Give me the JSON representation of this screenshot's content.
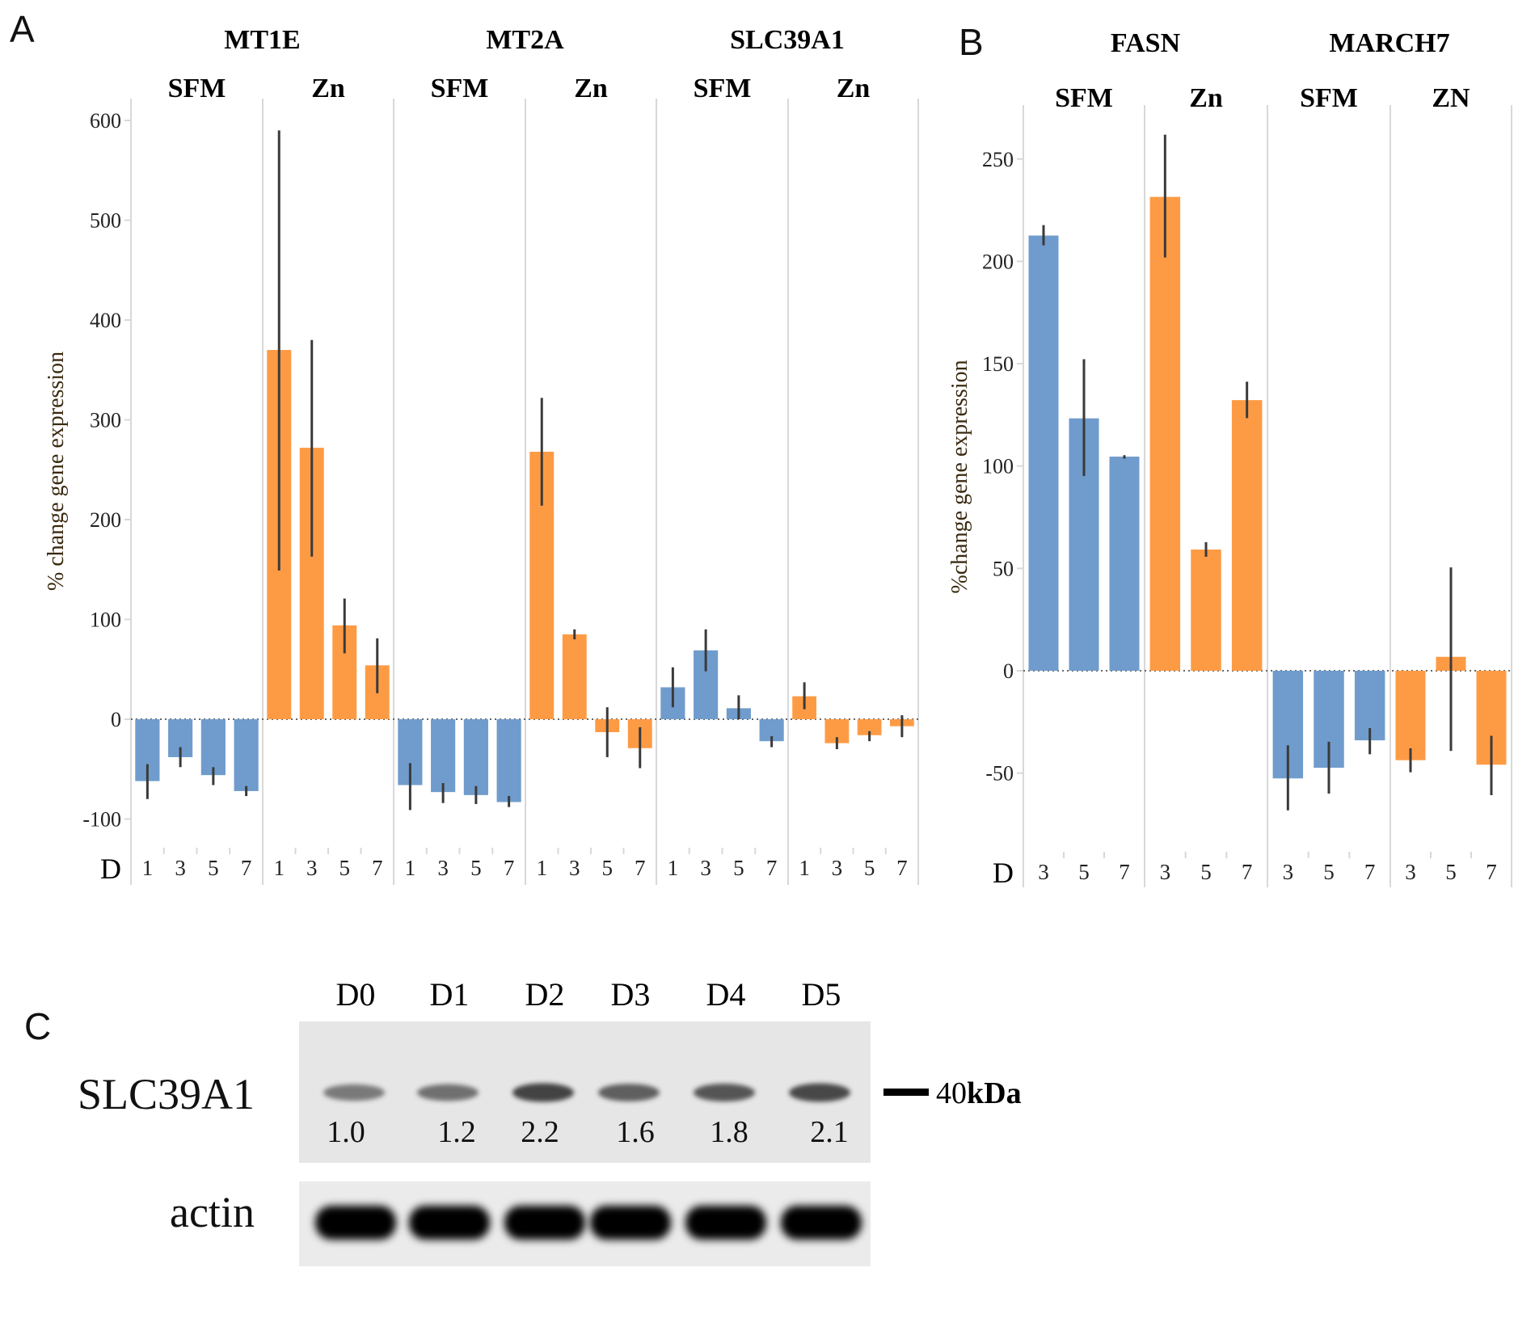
{
  "colors": {
    "sfm": "#6f9ccc",
    "zn": "#fd9b45",
    "error": "#3a3a3a",
    "grid": "#d8d8d8"
  },
  "chart_data": [
    {
      "type": "bar",
      "panel": "A",
      "ylabel": "% change gene expression",
      "ylim": [
        -120,
        620
      ],
      "yticks": [
        600,
        500,
        400,
        300,
        200,
        100,
        0,
        -100
      ],
      "xlabel_prefix": "D",
      "days": [
        "1",
        "3",
        "5",
        "7"
      ],
      "groups": [
        {
          "gene": "MT1E",
          "conditions": [
            {
              "name": "SFM",
              "values": [
                -62,
                -38,
                -56,
                -72
              ],
              "err_low": [
                -80,
                -48,
                -66,
                -77
              ],
              "err_high": [
                -45,
                -28,
                -48,
                -67
              ]
            },
            {
              "name": "Zn",
              "values": [
                370,
                272,
                94,
                54
              ],
              "err_low": [
                149,
                163,
                66,
                26
              ],
              "err_high": [
                590,
                380,
                121,
                81
              ]
            }
          ]
        },
        {
          "gene": "MT2A",
          "conditions": [
            {
              "name": "SFM",
              "values": [
                -66,
                -73,
                -76,
                -83
              ],
              "err_low": [
                -91,
                -84,
                -85,
                -88
              ],
              "err_high": [
                -44,
                -64,
                -67,
                -77
              ]
            },
            {
              "name": "Zn",
              "values": [
                268,
                85,
                -13,
                -29
              ],
              "err_low": [
                214,
                80,
                -38,
                -49
              ],
              "err_high": [
                322,
                90,
                12,
                -8
              ]
            }
          ]
        },
        {
          "gene": "SLC39A1",
          "conditions": [
            {
              "name": "SFM",
              "values": [
                32,
                69,
                11,
                -22
              ],
              "err_low": [
                12,
                48,
                0,
                -28
              ],
              "err_high": [
                52,
                90,
                24,
                -17
              ]
            },
            {
              "name": "Zn",
              "values": [
                23,
                -24,
                -16,
                -7
              ],
              "err_low": [
                10,
                -30,
                -22,
                -18
              ],
              "err_high": [
                37,
                -18,
                -12,
                4
              ]
            }
          ]
        }
      ]
    },
    {
      "type": "bar",
      "panel": "B",
      "ylabel": "%change gene expression",
      "ylim": [
        -75,
        265
      ],
      "yticks": [
        250,
        200,
        150,
        100,
        50,
        0,
        -50
      ],
      "xlabel_prefix": "D",
      "days": [
        "3",
        "5",
        "7"
      ],
      "groups": [
        {
          "gene": "FASN",
          "conditions": [
            {
              "name": "SFM",
              "values": [
                212.6,
                123.3,
                104.6
              ],
              "err_low": [
                207.8,
                95.1,
                103.6
              ],
              "err_high": [
                217.7,
                152.2,
                105.3
              ]
            },
            {
              "name": "Zn",
              "values": [
                231.5,
                59.2,
                132.2
              ],
              "err_low": [
                201.9,
                55.7,
                123.4
              ],
              "err_high": [
                261.9,
                62.8,
                141.2
              ]
            }
          ]
        },
        {
          "gene": "MARCH7",
          "conditions": [
            {
              "name": "SFM",
              "values": [
                -52.6,
                -47.4,
                -34
              ],
              "err_low": [
                -68.2,
                -60,
                -40.8
              ],
              "err_high": [
                -36.4,
                -34.7,
                -28
              ]
            },
            {
              "name": "ZN",
              "values": [
                -43.7,
                6.8,
                -45.9
              ],
              "err_low": [
                -49.6,
                -39.2,
                -60.8
              ],
              "err_high": [
                -37.9,
                50.5,
                -31.8
              ]
            }
          ]
        }
      ]
    }
  ],
  "panel_labels": {
    "a": "A",
    "b": "B",
    "c": "C"
  },
  "western_blot": {
    "lanes": [
      "D0",
      "D1",
      "D2",
      "D3",
      "D4",
      "D5"
    ],
    "target_protein": "SLC39A1",
    "loading_control": "actin",
    "quantification": [
      "1.0",
      "1.2",
      "2.2",
      "1.6",
      "1.8",
      "2.1"
    ],
    "band_intensity": [
      1.0,
      1.2,
      2.2,
      1.6,
      1.8,
      2.1
    ],
    "marker_number": "40",
    "marker_unit": "kDa"
  }
}
